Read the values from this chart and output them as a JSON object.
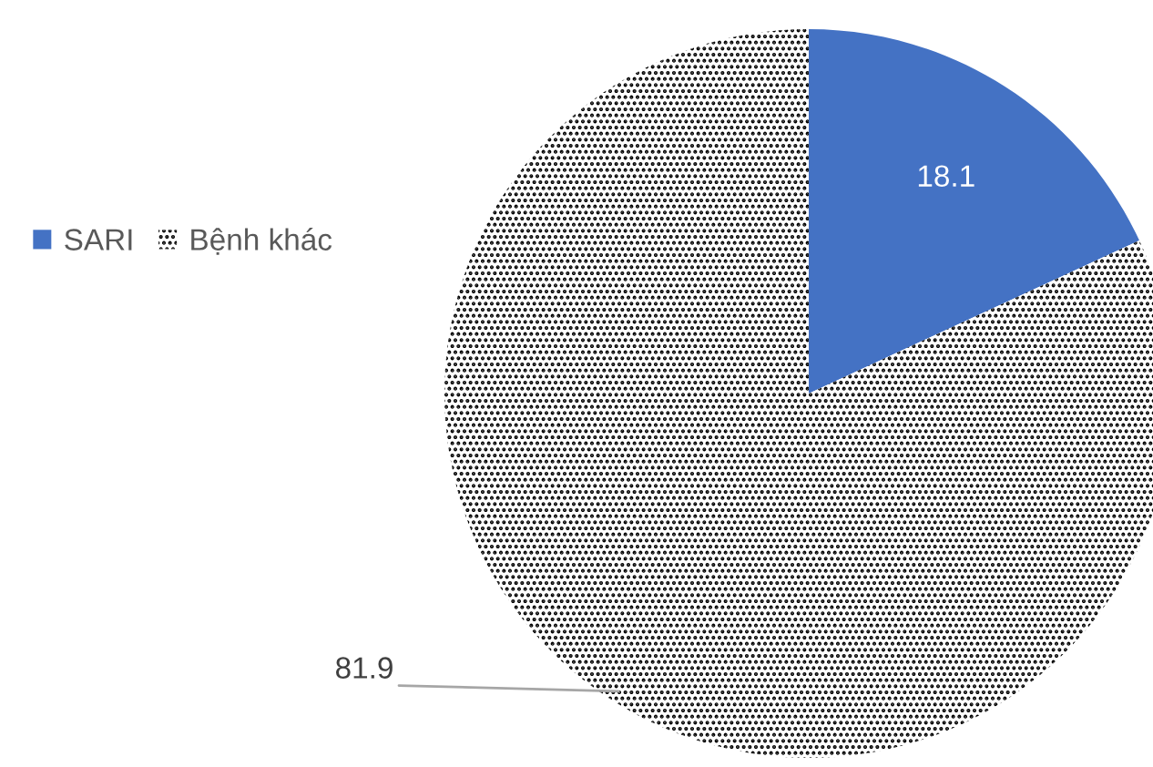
{
  "chart_data": {
    "type": "pie",
    "categories": [
      "SARI",
      "Bệnh khác"
    ],
    "values": [
      18.1,
      81.9
    ],
    "colors": [
      "#4472c4",
      "#000000"
    ],
    "data_labels": true,
    "legend": "left"
  }
}
